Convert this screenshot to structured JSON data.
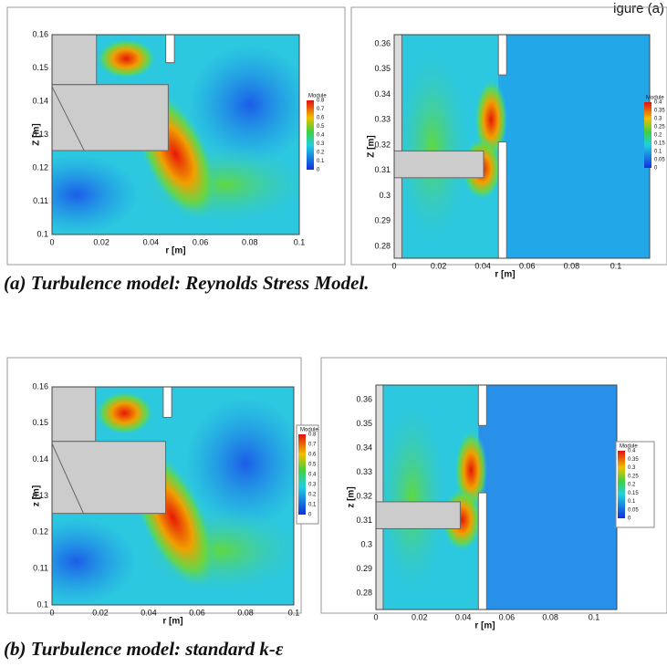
{
  "header": {
    "corner_text": "igure (a)"
  },
  "panels": [
    {
      "xticks": [
        "0",
        "0.02",
        "0.04",
        "0.06",
        "0.08",
        "0.1"
      ],
      "yticks": [
        "0.1",
        "0.11",
        "0.12",
        "0.13",
        "0.14",
        "0.15",
        "0.16"
      ],
      "xlabel": "r [m]",
      "ylabel": "Z [m]",
      "legend_title": "Module",
      "legend_ticks": [
        "0.8",
        "0.7",
        "0.6",
        "0.5",
        "0.4",
        "0.3",
        "0.2",
        "0.1",
        "0"
      ]
    },
    {
      "xticks": [
        "0",
        "0.02",
        "0.04",
        "0.06",
        "0.08",
        "0.1"
      ],
      "yticks": [
        "0.28",
        "0.29",
        "0.3",
        "0.31",
        "0.32",
        "0.33",
        "0.34",
        "0.35",
        "0.36"
      ],
      "xlabel": "r [m]",
      "ylabel": "Z [m]",
      "legend_title": "Module",
      "legend_ticks": [
        "0.4",
        "0.35",
        "0.3",
        "0.25",
        "0.2",
        "0.15",
        "0.1",
        "0.05",
        "0"
      ]
    },
    {
      "xticks": [
        "0",
        "0.02",
        "0.04",
        "0.06",
        "0.08",
        "0.1"
      ],
      "yticks": [
        "0.1",
        "0.11",
        "0.12",
        "0.13",
        "0.14",
        "0.15",
        "0.16"
      ],
      "xlabel": "r [m]",
      "ylabel": "z [m]",
      "legend_title": "Module",
      "legend_ticks": [
        "0.8",
        "0.7",
        "0.6",
        "0.5",
        "0.4",
        "0.3",
        "0.2",
        "0.1",
        "0"
      ]
    },
    {
      "xticks": [
        "0",
        "0.02",
        "0.04",
        "0.06",
        "0.08",
        "0.1"
      ],
      "yticks": [
        "0.28",
        "0.29",
        "0.3",
        "0.31",
        "0.32",
        "0.33",
        "0.34",
        "0.35",
        "0.36"
      ],
      "xlabel": "r [m]",
      "ylabel": "z [m]",
      "legend_title": "Module",
      "legend_ticks": [
        "0.4",
        "0.35",
        "0.3",
        "0.25",
        "0.2",
        "0.15",
        "0.1",
        "0.05",
        "0"
      ]
    }
  ],
  "captions": [
    "(a) Turbulence model: Reynolds Stress Model.",
    "(b) Turbulence model: standard k-ε"
  ]
}
